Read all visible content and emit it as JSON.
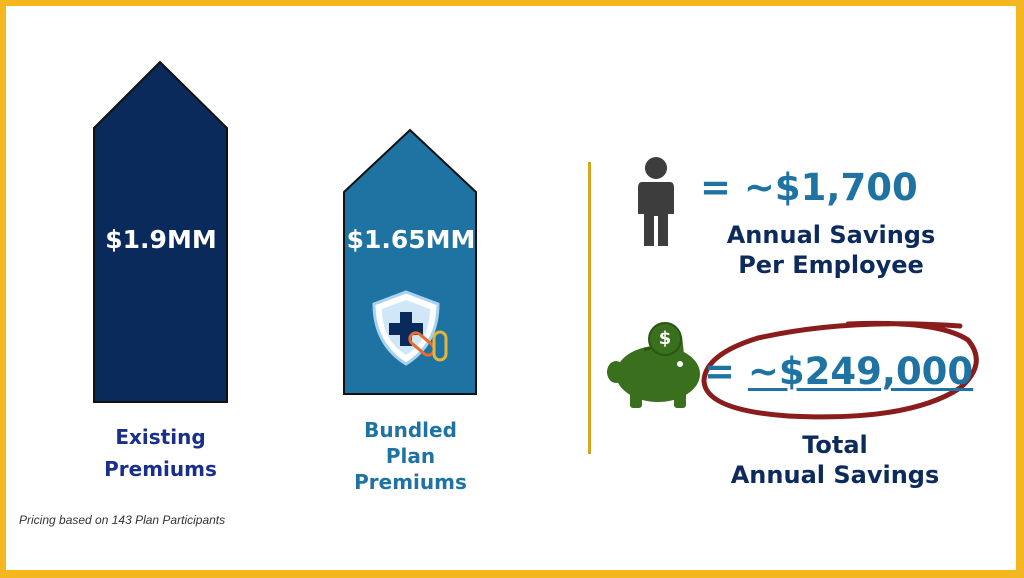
{
  "colors": {
    "border": "#f5b720",
    "existing": "#0b2a5c",
    "bundled": "#1f73a3",
    "accent_text": "#1f73a3",
    "dark_text": "#0d2a5c",
    "piggy": "#3a6f1e",
    "circle": "#8b1c1c",
    "divider": "#d9a520"
  },
  "chart_data": {
    "type": "bar",
    "categories": [
      "Existing Premiums",
      "Bundled Plan Premiums"
    ],
    "values": [
      1.9,
      1.65
    ],
    "value_labels": [
      "$1.9MM",
      "$1.65MM"
    ],
    "unit": "$MM"
  },
  "bars": [
    {
      "value_label": "$1.9MM",
      "label_lines": [
        "Existing",
        "Premiums"
      ]
    },
    {
      "value_label": "$1.65MM",
      "label_lines": [
        "Bundled",
        "Plan",
        "Premiums"
      ]
    }
  ],
  "icons": {
    "shield": "shield-medical-icon",
    "person": "person-icon",
    "piggy": "piggy-bank-icon",
    "coin": "dollar-coin-icon"
  },
  "employee_savings": {
    "equals": "=",
    "amount": "~$1,700",
    "label_lines": [
      "Annual Savings",
      "Per Employee"
    ]
  },
  "total_savings": {
    "equals": "=",
    "amount": "~$249,000",
    "label_lines": [
      "Total",
      "Annual Savings"
    ],
    "coin_symbol": "$"
  },
  "footnote": "Pricing based on 143 Plan Participants"
}
